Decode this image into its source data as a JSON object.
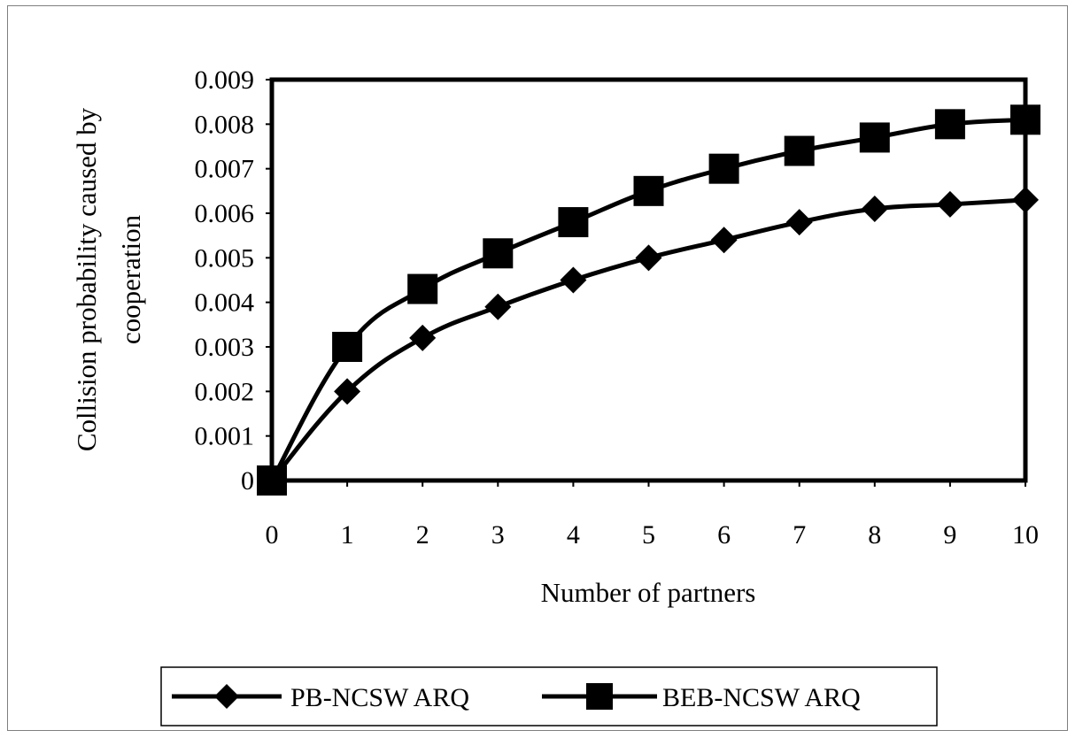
{
  "chart_data": {
    "type": "line",
    "x": [
      0,
      1,
      2,
      3,
      4,
      5,
      6,
      7,
      8,
      9,
      10
    ],
    "xlabel": "Number of partners",
    "ylabel": [
      "Collision probability caused by",
      "cooperation"
    ],
    "xlim": [
      0,
      10
    ],
    "ylim": [
      0,
      0.009
    ],
    "x_ticks": [
      "0",
      "1",
      "2",
      "3",
      "4",
      "5",
      "6",
      "7",
      "8",
      "9",
      "10"
    ],
    "y_ticks": [
      "0",
      "0.001",
      "0.002",
      "0.003",
      "0.004",
      "0.005",
      "0.006",
      "0.007",
      "0.008",
      "0.009"
    ],
    "grid": false,
    "legend_position": "bottom",
    "series": [
      {
        "name": "PB-NCSW ARQ",
        "marker": "diamond",
        "color": "#000000",
        "values": [
          0,
          0.002,
          0.0032,
          0.0039,
          0.0045,
          0.005,
          0.0054,
          0.0058,
          0.0061,
          0.0062,
          0.0063
        ]
      },
      {
        "name": "BEB-NCSW ARQ",
        "marker": "square",
        "color": "#000000",
        "values": [
          0,
          0.003,
          0.0043,
          0.0051,
          0.0058,
          0.0065,
          0.007,
          0.0074,
          0.0077,
          0.008,
          0.0081
        ]
      }
    ]
  }
}
